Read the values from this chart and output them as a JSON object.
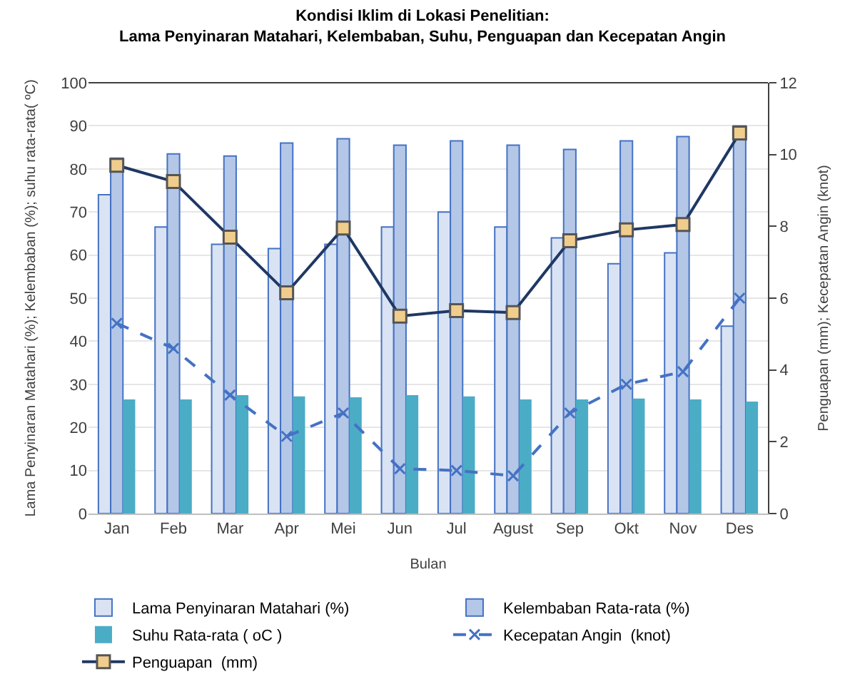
{
  "chart_data": {
    "type": "bar",
    "title": "Kondisi Iklim di Lokasi Penelitian:",
    "subtitle": "Lama Penyinaran Matahari, Kelembaban, Suhu, Penguapan dan Kecepatan Angin",
    "xlabel": "Bulan",
    "ylabel": "Lama Penyinaran Matahari (%); Kelembaban (%); suhu rata-rata( ºC)",
    "y2label": "Penguapan (mm); Kecepatan Angin (knot)",
    "categories": [
      "Jan",
      "Feb",
      "Mar",
      "Apr",
      "Mei",
      "Jun",
      "Jul",
      "Agust",
      "Sep",
      "Okt",
      "Nov",
      "Des"
    ],
    "series": [
      {
        "name": "Lama Penyinaran Matahari (%)",
        "color": "#dae3f3",
        "values": [
          74,
          66.5,
          62.5,
          61.5,
          62.5,
          66.5,
          70,
          66.5,
          64,
          58,
          60.5,
          43.5
        ]
      },
      {
        "name": "Kelembaban Rata-rata (%)",
        "color": "#b4c7e7",
        "values": [
          82.5,
          83.5,
          83,
          86,
          87,
          85.5,
          86.5,
          85.5,
          84.5,
          86.5,
          87.5,
          90
        ]
      },
      {
        "name": "Suhu Rata-rata ( oC )",
        "color": "#4bacc6",
        "values": [
          26.5,
          26.5,
          27.5,
          27.2,
          27,
          27.5,
          27.2,
          26.5,
          26.5,
          26.7,
          26.5,
          26
        ]
      },
      {
        "name": "Kecepatan Angin  (knot)",
        "type": "line",
        "axis": "y2",
        "color": "#4472c4",
        "line_style": "dashed",
        "marker": "cross",
        "values": [
          5.3,
          4.6,
          3.3,
          2.15,
          2.8,
          1.25,
          1.2,
          1.05,
          2.8,
          3.6,
          3.95,
          6.0
        ]
      },
      {
        "name": "Penguapan  (mm)",
        "type": "line",
        "axis": "y2",
        "color": "#1f3864",
        "line_style": "solid",
        "marker": "square",
        "values": [
          9.7,
          9.25,
          7.7,
          6.15,
          7.95,
          5.5,
          5.65,
          5.6,
          7.6,
          7.9,
          8.05,
          10.6
        ]
      }
    ],
    "ylim": [
      0,
      100
    ],
    "yticks": [
      0,
      10,
      20,
      30,
      40,
      50,
      60,
      70,
      80,
      90,
      100
    ],
    "y2lim": [
      0,
      12
    ],
    "y2ticks": [
      0,
      2,
      4,
      6,
      8,
      10,
      12
    ],
    "grid": "y",
    "legend": "bottom"
  }
}
